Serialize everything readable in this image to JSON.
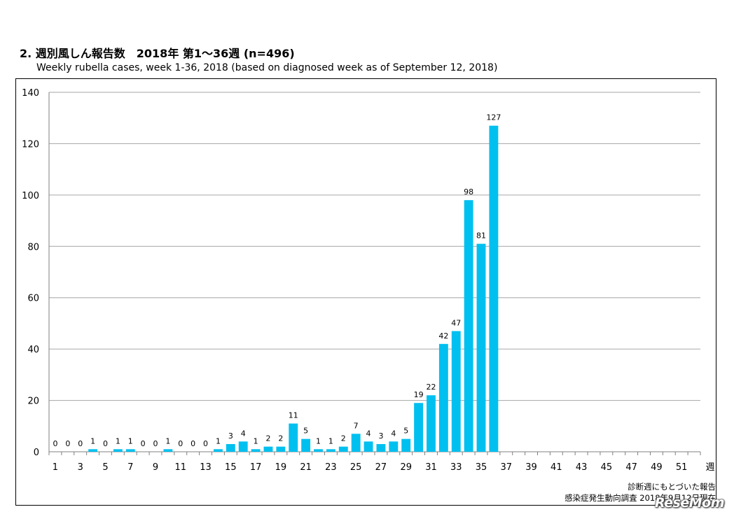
{
  "chart_data": {
    "type": "bar",
    "title": "2. 週別風しん報告数　2018年 第1～36週 (n=496)",
    "subtitle": "Weekly rubella cases, week 1-36, 2018 (based on diagnosed week as of September 12, 2018)",
    "xlabel": "週",
    "ylabel": "",
    "ylim": [
      0,
      140
    ],
    "yticks": [
      0,
      20,
      40,
      60,
      80,
      100,
      120,
      140
    ],
    "x_week_range": [
      1,
      52
    ],
    "xtick_labels": [
      "1",
      "3",
      "5",
      "7",
      "9",
      "11",
      "13",
      "15",
      "17",
      "19",
      "21",
      "23",
      "25",
      "27",
      "29",
      "31",
      "33",
      "35",
      "37",
      "39",
      "41",
      "43",
      "45",
      "47",
      "49",
      "51"
    ],
    "weeks": [
      1,
      2,
      3,
      4,
      5,
      6,
      7,
      8,
      9,
      10,
      11,
      12,
      13,
      14,
      15,
      16,
      17,
      18,
      19,
      20,
      21,
      22,
      23,
      24,
      25,
      26,
      27,
      28,
      29,
      30,
      31,
      32,
      33,
      34,
      35,
      36
    ],
    "values": [
      0,
      0,
      0,
      1,
      0,
      1,
      1,
      0,
      0,
      1,
      0,
      0,
      0,
      1,
      3,
      4,
      1,
      2,
      2,
      11,
      5,
      1,
      1,
      2,
      7,
      4,
      3,
      4,
      5,
      19,
      22,
      42,
      47,
      98,
      81,
      127
    ],
    "bar_color": "#00c0f0",
    "grid": true,
    "notes": [
      "診断週にもとづいた報告",
      "感染症発生動向調査 2018年9月12日現在"
    ]
  },
  "watermark": "ReseMom"
}
